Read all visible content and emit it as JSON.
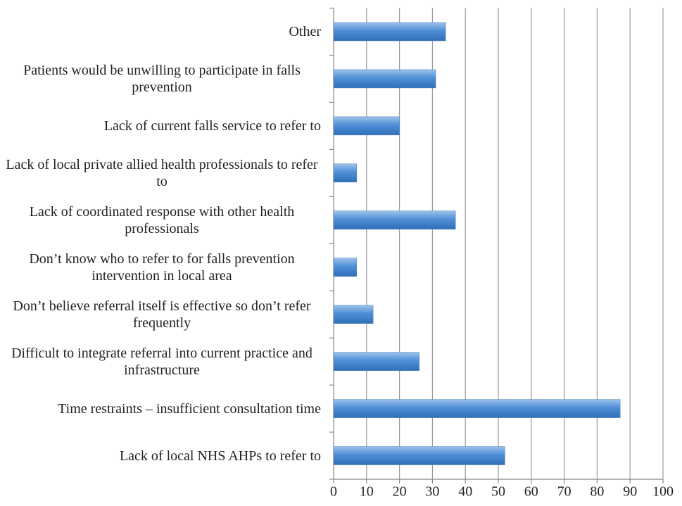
{
  "chart_data": {
    "type": "bar",
    "orientation": "horizontal",
    "categories": [
      "Other",
      "Patients would be unwilling to participate in falls prevention",
      "Lack of current falls service to refer to",
      "Lack of local private allied health professionals to refer to",
      "Lack of coordinated response with other health professionals",
      "Don’t know who to refer to for falls prevention intervention in local area",
      "Don’t believe referral itself is effective so don’t refer frequently",
      "Difficult to integrate referral into current practice and infrastructure",
      "Time restraints – insufficient consultation time",
      "Lack of local NHS AHPs to refer to"
    ],
    "values": [
      34,
      31,
      20,
      7,
      37,
      7,
      12,
      26,
      87,
      52
    ],
    "color": "#4a7ebb",
    "xlim": [
      0,
      100
    ],
    "xticks": [
      0,
      10,
      20,
      30,
      40,
      50,
      60,
      70,
      80,
      90,
      100
    ],
    "grid": true
  }
}
